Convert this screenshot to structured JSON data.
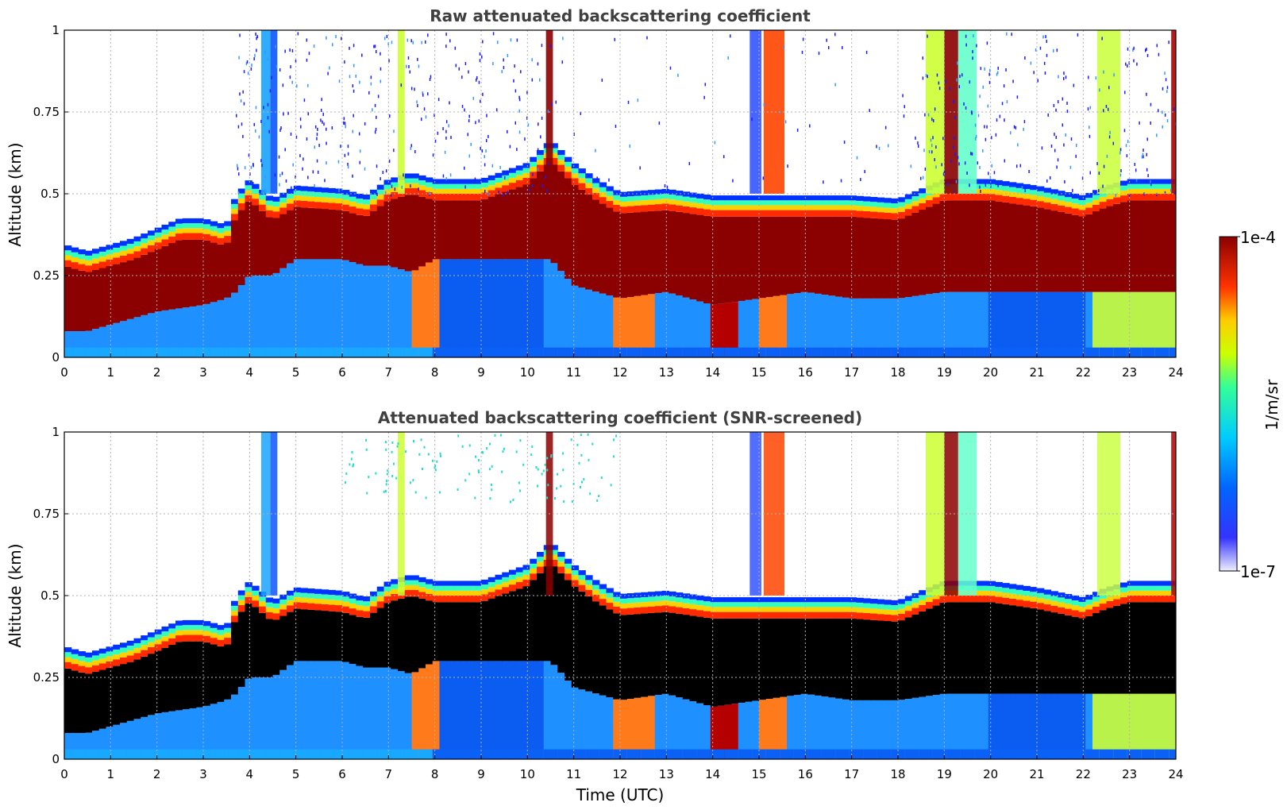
{
  "chart_data": [
    {
      "type": "heatmap",
      "title": "Raw attenuated backscattering coefficient",
      "xlabel": "",
      "ylabel": "Altitude (km)",
      "xlim": [
        0,
        24
      ],
      "ylim": [
        0,
        1
      ],
      "xticks": [
        "0",
        "1",
        "2",
        "3",
        "4",
        "5",
        "6",
        "7",
        "8",
        "9",
        "10",
        "11",
        "12",
        "13",
        "14",
        "15",
        "16",
        "17",
        "18",
        "19",
        "20",
        "21",
        "22",
        "23",
        "24"
      ],
      "yticks": [
        "0",
        "0.25",
        "0.5",
        "0.75",
        "1"
      ],
      "grid": true,
      "cmap": "jet",
      "layer_profile": {
        "time": [
          0,
          0.5,
          1,
          1.5,
          2,
          2.5,
          3,
          3.5,
          3.7,
          4,
          4.5,
          5,
          6,
          6.5,
          7,
          7.5,
          8,
          9,
          10,
          10.5,
          11,
          11.5,
          12,
          13,
          14,
          15,
          16,
          17,
          18,
          19,
          20,
          21,
          22,
          22.5,
          23,
          24
        ],
        "top_km": [
          0.3,
          0.28,
          0.3,
          0.32,
          0.35,
          0.38,
          0.38,
          0.36,
          0.45,
          0.5,
          0.44,
          0.48,
          0.47,
          0.45,
          0.5,
          0.52,
          0.5,
          0.5,
          0.55,
          0.62,
          0.55,
          0.5,
          0.46,
          0.47,
          0.45,
          0.45,
          0.45,
          0.45,
          0.44,
          0.5,
          0.5,
          0.48,
          0.45,
          0.48,
          0.5,
          0.5
        ],
        "base_km": [
          0.08,
          0.08,
          0.1,
          0.12,
          0.14,
          0.15,
          0.16,
          0.18,
          0.2,
          0.25,
          0.25,
          0.3,
          0.3,
          0.28,
          0.28,
          0.26,
          0.3,
          0.3,
          0.3,
          0.3,
          0.22,
          0.2,
          0.18,
          0.2,
          0.16,
          0.18,
          0.2,
          0.18,
          0.18,
          0.2,
          0.2,
          0.2,
          0.2,
          0.2,
          0.2,
          0.2
        ]
      }
    },
    {
      "type": "heatmap",
      "title": "Attenuated backscattering coefficient (SNR-screened)",
      "xlabel": "Time (UTC)",
      "ylabel": "Altitude (km)",
      "xlim": [
        0,
        24
      ],
      "ylim": [
        0,
        1
      ],
      "xticks": [
        "0",
        "1",
        "2",
        "3",
        "4",
        "5",
        "6",
        "7",
        "8",
        "9",
        "10",
        "11",
        "12",
        "13",
        "14",
        "15",
        "16",
        "17",
        "18",
        "19",
        "20",
        "21",
        "22",
        "23",
        "24"
      ],
      "yticks": [
        "0",
        "0.25",
        "0.5",
        "0.75",
        "1"
      ],
      "grid": true,
      "cmap": "jet"
    }
  ],
  "colorbar": {
    "label": "1/m/sr",
    "max_label": "1e-4",
    "min_label": "1e-7",
    "scale": "log",
    "colors": [
      "#eeeeff",
      "#0000ff",
      "#00aaff",
      "#00ffcc",
      "#ccff00",
      "#ffcc00",
      "#ff3300",
      "#8b0000"
    ]
  }
}
